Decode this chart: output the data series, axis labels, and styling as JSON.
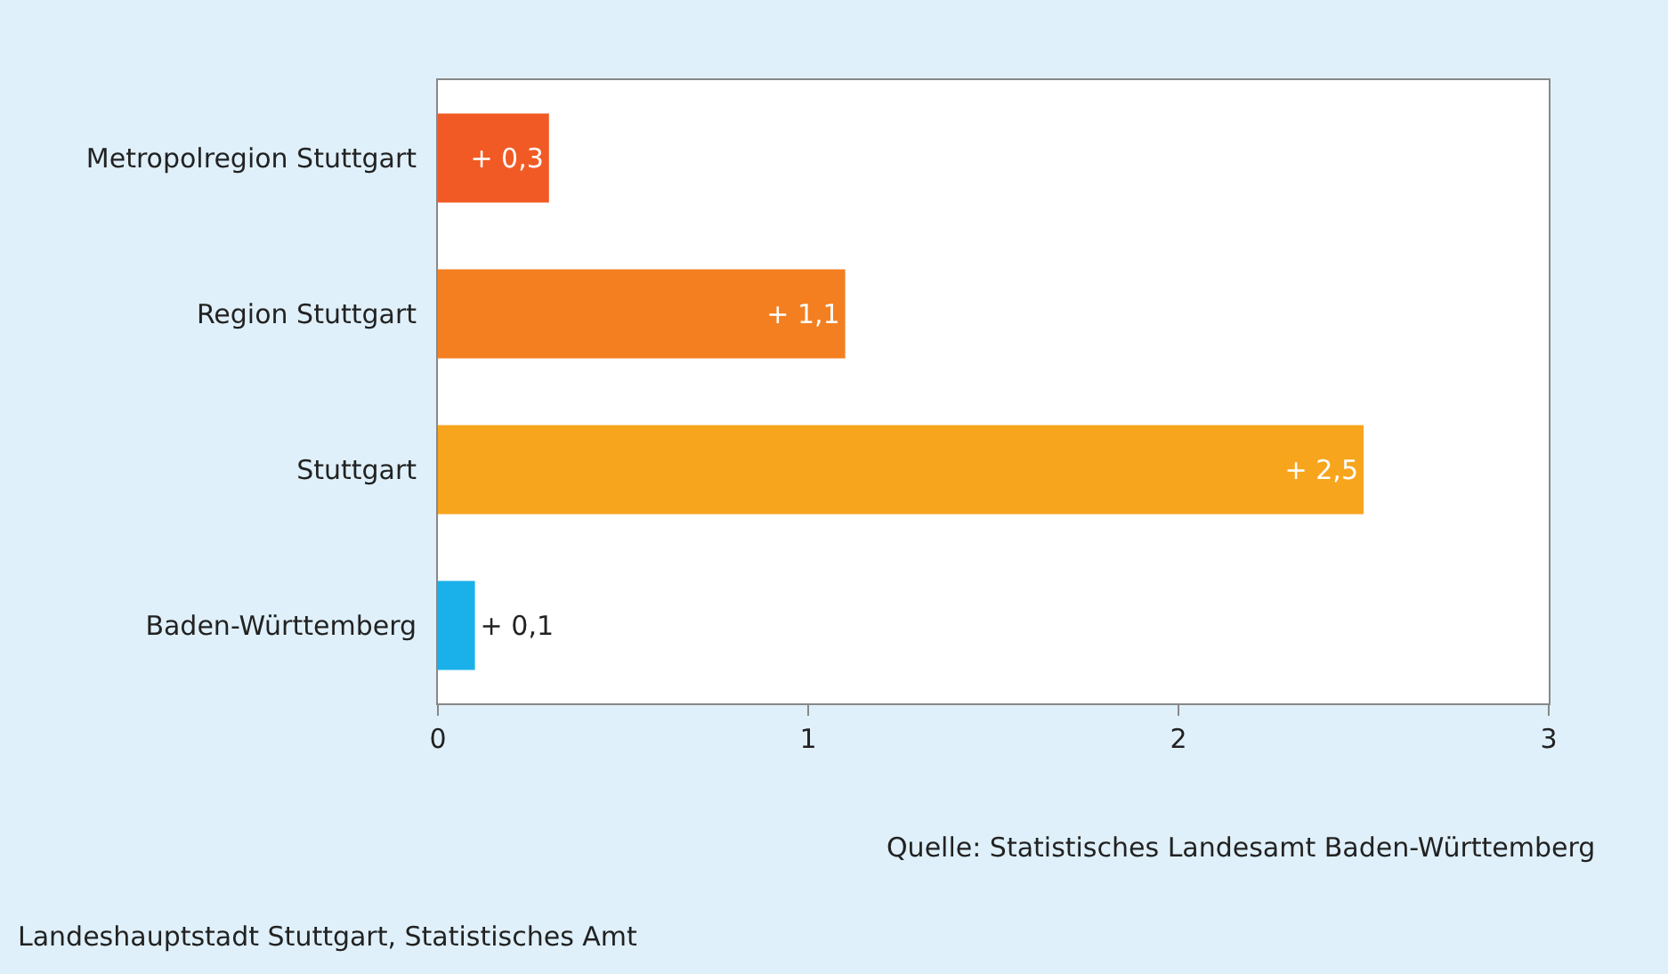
{
  "chart_data": {
    "type": "bar",
    "orientation": "horizontal",
    "categories": [
      "Metropolregion Stuttgart",
      "Region Stuttgart",
      "Stuttgart",
      "Baden-Württemberg"
    ],
    "values": [
      0.3,
      1.1,
      2.5,
      0.1
    ],
    "colors": [
      "#f15a24",
      "#f47f20",
      "#f7a51d",
      "#1ab0ea"
    ],
    "value_labels": [
      "+ 0,3",
      "+ 1,1",
      "+ 2,5",
      "+ 0,1"
    ],
    "xlim": [
      0,
      3
    ],
    "xticks": [
      0,
      1,
      2,
      3
    ],
    "legend": false,
    "annotations": [
      "Quelle: Statistisches Landesamt Baden-Württemberg",
      "Landeshauptstadt Stuttgart, Statistisches Amt"
    ]
  }
}
